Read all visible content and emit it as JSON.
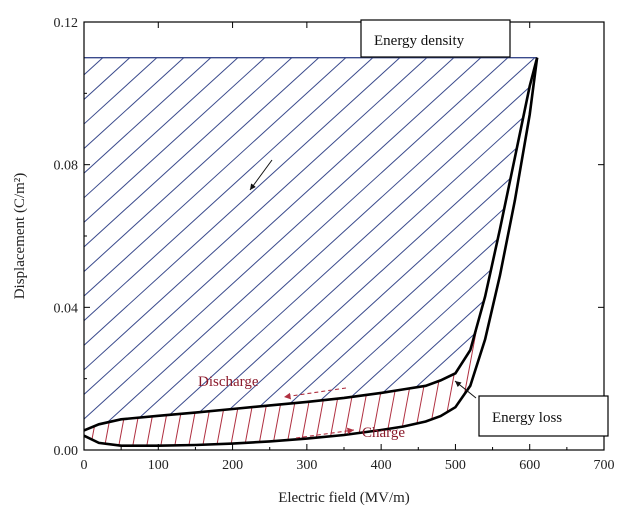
{
  "chart_data": {
    "type": "line",
    "xlabel": "Electric field (MV/m)",
    "ylabel": "Displacement (C/m²)",
    "xlim": [
      0,
      700
    ],
    "ylim": [
      0,
      0.12
    ],
    "x_ticks": [
      0,
      100,
      200,
      300,
      400,
      500,
      600,
      700
    ],
    "y_ticks": [
      0.0,
      0.04,
      0.08,
      0.12
    ],
    "y_tick_labels": [
      "0.00",
      "0.04",
      "0.08",
      "0.12"
    ],
    "grid": false,
    "series": [
      {
        "x": [
          0,
          20,
          50,
          100,
          150,
          200,
          250,
          300,
          350,
          400,
          430,
          460,
          480,
          500,
          520,
          540,
          560,
          580,
          600,
          610
        ],
        "y": [
          0.0055,
          0.0072,
          0.0086,
          0.0096,
          0.0105,
          0.0115,
          0.0125,
          0.0135,
          0.0146,
          0.016,
          0.017,
          0.018,
          0.0195,
          0.0215,
          0.028,
          0.043,
          0.062,
          0.082,
          0.102,
          0.11
        ]
      },
      {
        "x": [
          0,
          20,
          50,
          100,
          150,
          200,
          250,
          300,
          350,
          400,
          430,
          460,
          480,
          500,
          520,
          540,
          560,
          580,
          600,
          610
        ],
        "y": [
          0.004,
          0.002,
          0.0012,
          0.0012,
          0.0014,
          0.0018,
          0.0024,
          0.0032,
          0.0042,
          0.0056,
          0.0066,
          0.008,
          0.0095,
          0.012,
          0.018,
          0.031,
          0.049,
          0.07,
          0.094,
          0.11
        ]
      }
    ],
    "max_displacement": 0.11,
    "max_field": 610,
    "annotations": {
      "energy_density": "Energy density",
      "energy_loss": "Energy loss",
      "discharge": "Discharge",
      "charge": "Charge"
    },
    "colors": {
      "hatch_density": "#3a4a8c",
      "hatch_loss": "#b03040",
      "curve": "#000000",
      "annotation_red": "#8b1a2b"
    }
  }
}
